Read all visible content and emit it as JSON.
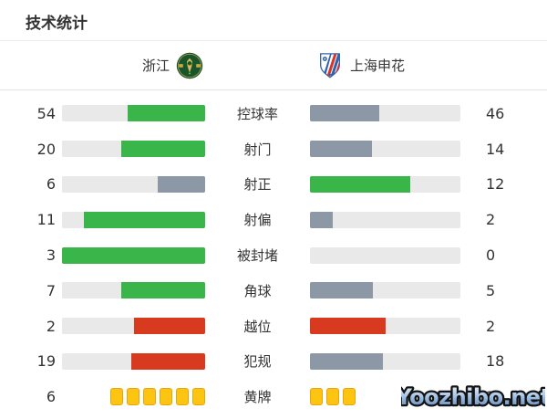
{
  "page": {
    "title": "技术统计"
  },
  "teams": {
    "home": {
      "name": "浙江"
    },
    "away": {
      "name": "上海申花"
    }
  },
  "colors": {
    "win": "#3ab54a",
    "lose": "#8d98a6",
    "negative": "#d83a20",
    "track": "#e9e9e9",
    "card_fill": "#fdc511",
    "card_border": "#e7a50d",
    "text": "#333333"
  },
  "stats": [
    {
      "label": "控球率",
      "home": 54,
      "away": 46,
      "type": "bar",
      "home_color": "win",
      "away_color": "lose"
    },
    {
      "label": "射门",
      "home": 20,
      "away": 14,
      "type": "bar",
      "home_color": "win",
      "away_color": "lose"
    },
    {
      "label": "射正",
      "home": 6,
      "away": 12,
      "type": "bar",
      "home_color": "lose",
      "away_color": "win"
    },
    {
      "label": "射偏",
      "home": 11,
      "away": 2,
      "type": "bar",
      "home_color": "win",
      "away_color": "lose"
    },
    {
      "label": "被封堵",
      "home": 3,
      "away": 0,
      "type": "bar",
      "home_color": "win",
      "away_color": "lose"
    },
    {
      "label": "角球",
      "home": 7,
      "away": 5,
      "type": "bar",
      "home_color": "win",
      "away_color": "lose"
    },
    {
      "label": "越位",
      "home": 2,
      "away": 2,
      "type": "bar",
      "home_color": "negative",
      "away_color": "negative"
    },
    {
      "label": "犯规",
      "home": 19,
      "away": 18,
      "type": "bar",
      "home_color": "negative",
      "away_color": "lose"
    },
    {
      "label": "黄牌",
      "home": 6,
      "away": 3,
      "type": "cards"
    }
  ],
  "watermark": {
    "text": "Yoozhibo.net"
  },
  "chart_data": {
    "type": "bar",
    "title": "技术统计",
    "layout": "horizontal-opposed-bars",
    "categories": [
      "控球率",
      "射门",
      "射正",
      "射偏",
      "被封堵",
      "角球",
      "越位",
      "犯规",
      "黄牌"
    ],
    "series": [
      {
        "name": "浙江",
        "values": [
          54,
          20,
          6,
          11,
          3,
          7,
          2,
          19,
          6
        ]
      },
      {
        "name": "上海申花",
        "values": [
          46,
          14,
          12,
          2,
          0,
          5,
          2,
          18,
          3
        ]
      }
    ],
    "bar_fill_rule": "value / (home+away)",
    "legend_position": "top-center",
    "grid": false
  }
}
